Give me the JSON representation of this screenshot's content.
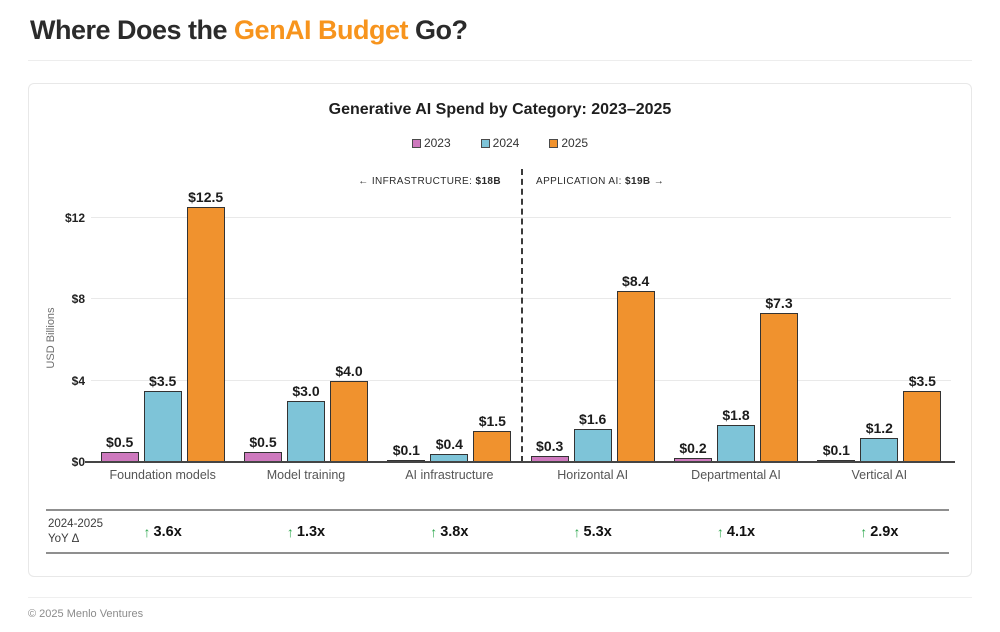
{
  "header": {
    "title_prefix": "Where Does the ",
    "title_accent": "GenAI Budget",
    "title_suffix": " Go?"
  },
  "colors": {
    "title_accent": "#f7941d",
    "bar_2023": "#ce79be",
    "bar_2024": "#7ec4d8",
    "bar_2025": "#f0922e",
    "bar_border": "#333333",
    "arrow_green": "#2fa84f"
  },
  "chart_data": {
    "type": "bar",
    "title": "Generative AI Spend by Category: 2023–2025",
    "ylabel": "USD Billions",
    "ylim": [
      0,
      13.8
    ],
    "grid": true,
    "legend_position": "top-center",
    "yticks": [
      {
        "v": 0,
        "label": "$0"
      },
      {
        "v": 4,
        "label": "$4"
      },
      {
        "v": 8,
        "label": "$8"
      },
      {
        "v": 12,
        "label": "$12"
      }
    ],
    "categories": [
      "Foundation models",
      "Model training",
      "AI infrastructure",
      "Horizontal AI",
      "Departmental AI",
      "Vertical AI"
    ],
    "series": [
      {
        "name": "2023",
        "color": "#ce79be",
        "values": [
          0.5,
          0.5,
          0.1,
          0.3,
          0.2,
          0.1
        ]
      },
      {
        "name": "2024",
        "color": "#7ec4d8",
        "values": [
          3.5,
          3.0,
          0.4,
          1.6,
          1.8,
          1.2
        ]
      },
      {
        "name": "2025",
        "color": "#f0922e",
        "values": [
          12.5,
          4.0,
          1.5,
          8.4,
          7.3,
          3.5
        ]
      }
    ],
    "value_label_prefix": "$",
    "section_divider": {
      "after_category_index": 2,
      "left_label": "← INFRASTRUCTURE: ",
      "left_value": "$18B",
      "right_label": "APPLICATION AI: ",
      "right_value": "$19B",
      "right_arrow": "→"
    }
  },
  "yoy": {
    "label_line1": "2024-2025",
    "label_line2": "YoY Δ",
    "arrow": "↑",
    "values": [
      "3.6x",
      "1.3x",
      "3.8x",
      "5.3x",
      "4.1x",
      "2.9x"
    ]
  },
  "footer": {
    "text": "© 2025 Menlo Ventures"
  }
}
